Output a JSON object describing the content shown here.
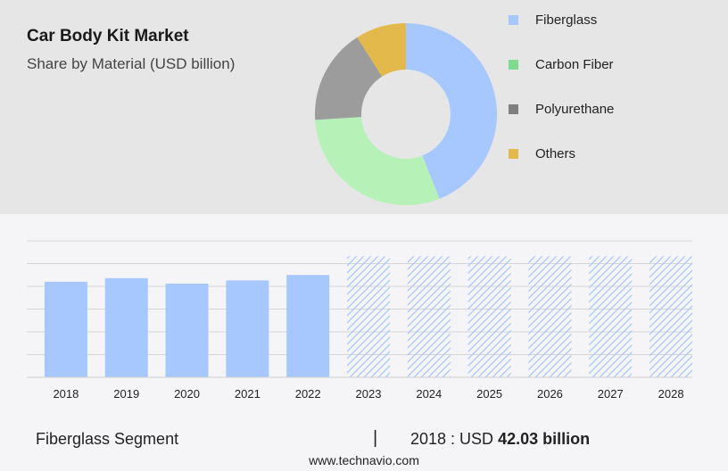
{
  "header": {
    "title": "Car Body Kit Market",
    "subtitle": "Share by Material (USD billion)"
  },
  "chart_data": [
    {
      "type": "pie",
      "variant": "donut",
      "title": "Car Body Kit Market",
      "subtitle": "Share by Material (USD billion)",
      "labels": [
        "Fiberglass",
        "Carbon Fiber",
        "Polyurethane",
        "Others"
      ],
      "values": [
        44,
        30,
        17,
        9
      ],
      "colors": [
        "#a6c8ff",
        "#b6f2b8",
        "#9c9c9c",
        "#e3b94b"
      ],
      "legend_colors": [
        "#a6c8ff",
        "#7fdc8f",
        "#7f7f7f",
        "#e3b94b"
      ],
      "legend_position": "right"
    },
    {
      "type": "bar",
      "categories": [
        "2018",
        "2019",
        "2020",
        "2021",
        "2022",
        "2023",
        "2024",
        "2025",
        "2026",
        "2027",
        "2028"
      ],
      "values": [
        42.03,
        43.6,
        41.2,
        42.6,
        45.0,
        53.2,
        53.2,
        53.2,
        53.2,
        53.2,
        53.2
      ],
      "forecast_from": "2023",
      "ylim": [
        0,
        60
      ],
      "grid": true,
      "bar_color": "#a6c8ff",
      "forecast_style": "hatched"
    }
  ],
  "footer": {
    "segment_label": "Fiberglass Segment",
    "separator": "|",
    "value_prefix": "2018 : USD",
    "value_bold": "42.03 billion"
  },
  "source": "www.technavio.com"
}
